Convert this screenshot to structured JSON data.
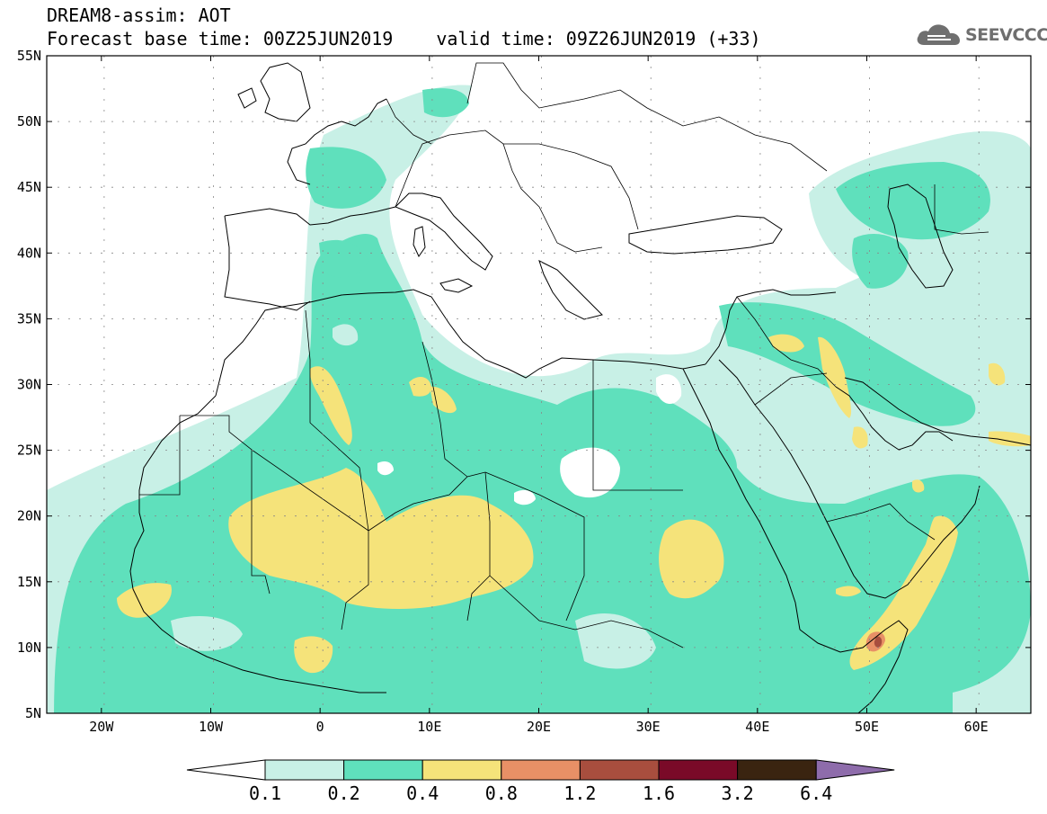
{
  "title": {
    "line1": "DREAM8-assim: AOT",
    "base_time": "Forecast base time: 00Z25JUN2019",
    "valid_time": "valid time: 09Z26JUN2019 (+33)"
  },
  "logo": {
    "icon": "cloud-icon",
    "text": "SEEVCCC"
  },
  "map": {
    "lat_ticks": [
      {
        "label": "55N",
        "lat": 55
      },
      {
        "label": "50N",
        "lat": 50
      },
      {
        "label": "45N",
        "lat": 45
      },
      {
        "label": "40N",
        "lat": 40
      },
      {
        "label": "35N",
        "lat": 35
      },
      {
        "label": "30N",
        "lat": 30
      },
      {
        "label": "25N",
        "lat": 25
      },
      {
        "label": "20N",
        "lat": 20
      },
      {
        "label": "15N",
        "lat": 15
      },
      {
        "label": "10N",
        "lat": 10
      },
      {
        "label": "5N",
        "lat": 5
      }
    ],
    "lon_ticks": [
      {
        "label": "20W",
        "lon": -20
      },
      {
        "label": "10W",
        "lon": -10
      },
      {
        "label": "0",
        "lon": 0
      },
      {
        "label": "10E",
        "lon": 10
      },
      {
        "label": "20E",
        "lon": 20
      },
      {
        "label": "30E",
        "lon": 30
      },
      {
        "label": "40E",
        "lon": 40
      },
      {
        "label": "50E",
        "lon": 50
      },
      {
        "label": "60E",
        "lon": 60
      }
    ],
    "lon_range": [
      -25,
      65
    ],
    "lat_range": [
      5,
      55
    ]
  },
  "colorbar": {
    "bins": [
      {
        "color": "#c8f0e6",
        "from": "0.1",
        "to": "0.2"
      },
      {
        "color": "#5fe0bc",
        "from": "0.2",
        "to": "0.4"
      },
      {
        "color": "#f5e37a",
        "from": "0.4",
        "to": "0.8"
      },
      {
        "color": "#e89066",
        "from": "0.8",
        "to": "1.2"
      },
      {
        "color": "#a84e3e",
        "from": "1.2",
        "to": "1.6"
      },
      {
        "color": "#7a0a28",
        "from": "1.6",
        "to": "3.2"
      },
      {
        "color": "#3a2410",
        "from": "3.2",
        "to": "6.4"
      }
    ],
    "under_color": "#ffffff",
    "over_color": "#8e6cab",
    "labels": [
      "0.1",
      "0.2",
      "0.4",
      "0.8",
      "1.2",
      "1.6",
      "3.2",
      "6.4"
    ]
  }
}
